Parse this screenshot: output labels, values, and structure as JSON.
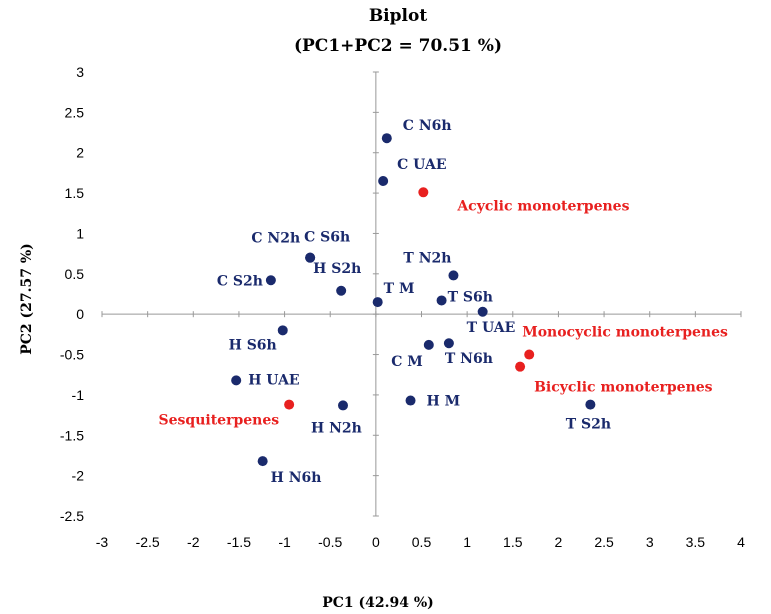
{
  "chart_data": {
    "type": "scatter",
    "title": "Biplot",
    "subtitle": "(PC1+PC2 = 70.51 %)",
    "xlabel": "PC1 (42.94 %)",
    "ylabel": "PC2 (27.57 %)",
    "xlim": [
      -3,
      4
    ],
    "ylim": [
      -2.5,
      3
    ],
    "xticks": [
      -3,
      -2.5,
      -2,
      -1.5,
      -1,
      -0.5,
      0,
      0.5,
      1,
      1.5,
      2,
      2.5,
      3,
      3.5,
      4
    ],
    "yticks": [
      -2.5,
      -2,
      -1.5,
      -1,
      -0.5,
      0,
      0.5,
      1,
      1.5,
      2,
      2.5,
      3
    ],
    "grid": false,
    "colors": {
      "samples": "#1a2a6c",
      "variables": "#e8201f",
      "axis": "#999999"
    },
    "series": [
      {
        "name": "samples",
        "color": "#1a2a6c",
        "points": [
          {
            "label": "C N6h",
            "x": 0.12,
            "y": 2.18
          },
          {
            "label": "C UAE",
            "x": 0.08,
            "y": 1.65
          },
          {
            "label": "C S6h",
            "x": -0.72,
            "y": 0.7
          },
          {
            "label": "C N2h",
            "x": -0.72,
            "y": 0.7
          },
          {
            "label": "C S2h",
            "x": -1.15,
            "y": 0.42
          },
          {
            "label": "H S2h",
            "x": -0.38,
            "y": 0.29
          },
          {
            "label": "T M",
            "x": 0.02,
            "y": 0.15
          },
          {
            "label": "T N2h",
            "x": 0.85,
            "y": 0.48
          },
          {
            "label": "T S6h",
            "x": 0.72,
            "y": 0.17
          },
          {
            "label": "T UAE",
            "x": 1.17,
            "y": 0.03
          },
          {
            "label": "H S6h",
            "x": -1.02,
            "y": -0.2
          },
          {
            "label": "C M",
            "x": 0.58,
            "y": -0.38
          },
          {
            "label": "T N6h",
            "x": 0.8,
            "y": -0.36
          },
          {
            "label": "H UAE",
            "x": -1.53,
            "y": -0.82
          },
          {
            "label": "H M",
            "x": 0.38,
            "y": -1.07
          },
          {
            "label": "H N2h",
            "x": -0.36,
            "y": -1.13
          },
          {
            "label": "H N6h",
            "x": -1.24,
            "y": -1.82
          },
          {
            "label": "T S2h",
            "x": 2.35,
            "y": -1.12
          }
        ]
      },
      {
        "name": "variables",
        "color": "#e8201f",
        "points": [
          {
            "label": "Acyclic monoterpenes",
            "x": 0.52,
            "y": 1.51
          },
          {
            "label": "Monocyclic monoterpenes",
            "x": 1.68,
            "y": -0.5
          },
          {
            "label": "Bicyclic monoterpenes",
            "x": 1.58,
            "y": -0.65
          },
          {
            "label": "Sesquiterpenes",
            "x": -0.95,
            "y": -1.12
          }
        ]
      }
    ]
  }
}
